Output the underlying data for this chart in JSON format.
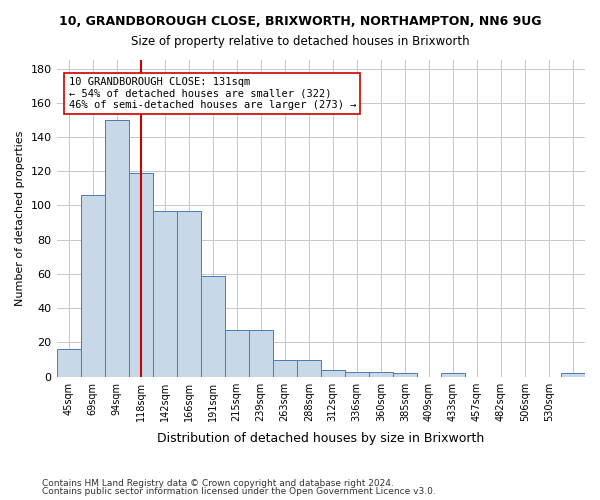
{
  "title1": "10, GRANDBOROUGH CLOSE, BRIXWORTH, NORTHAMPTON, NN6 9UG",
  "title2": "Size of property relative to detached houses in Brixworth",
  "xlabel": "Distribution of detached houses by size in Brixworth",
  "ylabel": "Number of detached properties",
  "bar_values": [
    16,
    106,
    150,
    119,
    97,
    97,
    59,
    27,
    27,
    10,
    10,
    4,
    3,
    3,
    2,
    0,
    2,
    0,
    0,
    0,
    0,
    2
  ],
  "bin_labels": [
    "45sqm",
    "69sqm",
    "94sqm",
    "118sqm",
    "142sqm",
    "166sqm",
    "191sqm",
    "215sqm",
    "239sqm",
    "263sqm",
    "288sqm",
    "312sqm",
    "336sqm",
    "360sqm",
    "385sqm",
    "409sqm",
    "433sqm",
    "457sqm",
    "482sqm",
    "506sqm",
    "530sqm",
    ""
  ],
  "bar_color": "#c8d8e8",
  "bar_edge_color": "#4a7ab5",
  "red_line_x": 3.5,
  "red_line_color": "#cc0000",
  "annotation_text": "10 GRANDBOROUGH CLOSE: 131sqm\n← 54% of detached houses are smaller (322)\n46% of semi-detached houses are larger (273) →",
  "annotation_box_color": "#ffffff",
  "annotation_box_edge": "#cc0000",
  "ylim": [
    0,
    185
  ],
  "yticks": [
    0,
    20,
    40,
    60,
    80,
    100,
    120,
    140,
    160,
    180
  ],
  "footer1": "Contains HM Land Registry data © Crown copyright and database right 2024.",
  "footer2": "Contains public sector information licensed under the Open Government Licence v3.0.",
  "bg_color": "#ffffff",
  "grid_color": "#c0c8d0"
}
